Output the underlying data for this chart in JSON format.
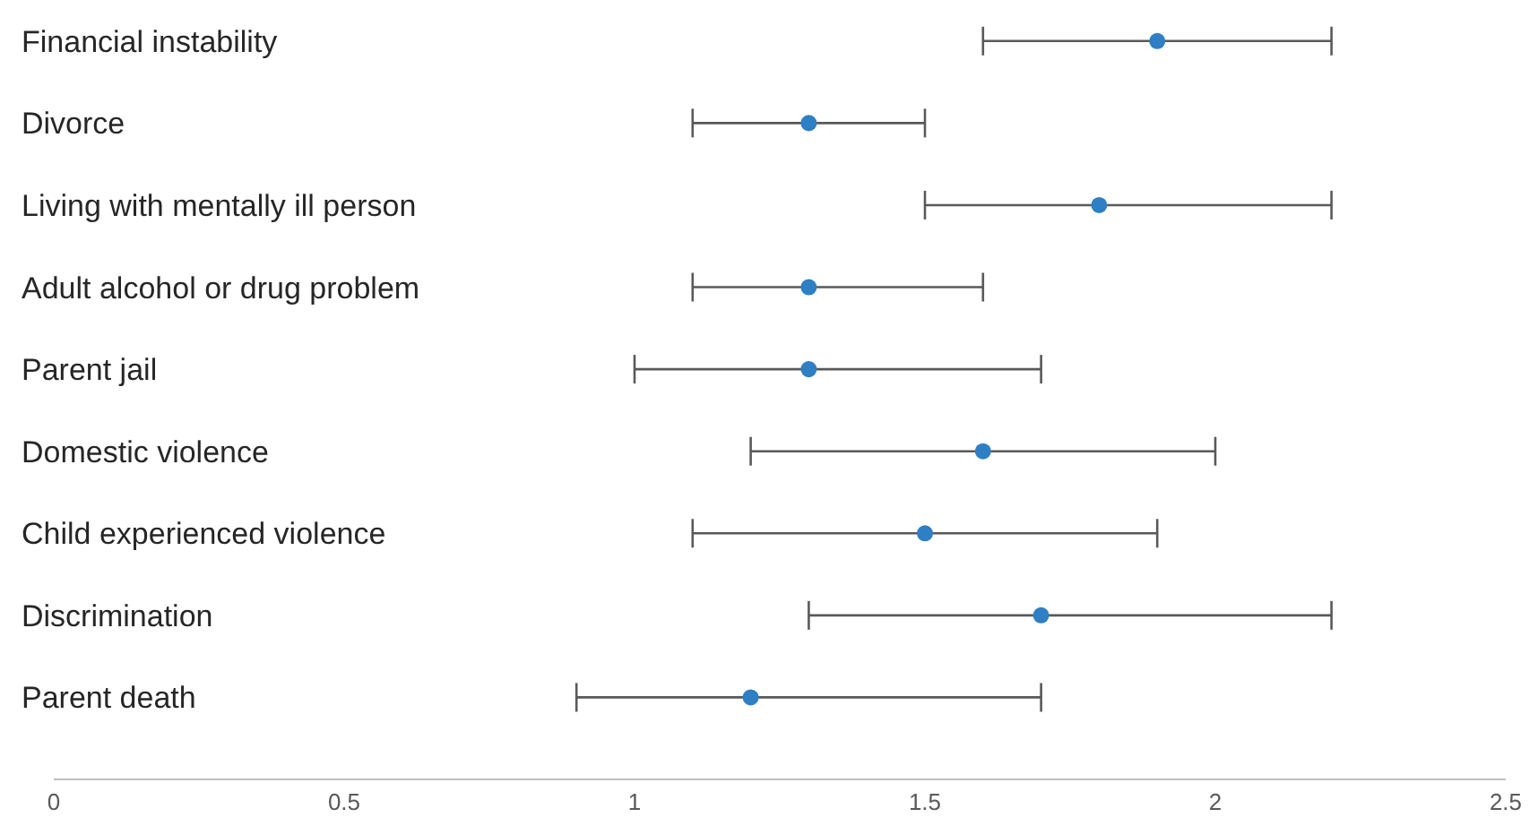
{
  "chart_data": {
    "type": "scatter",
    "orientation": "horizontal",
    "categories": [
      "Financial instability",
      "Divorce",
      "Living with mentally ill person",
      "Adult alcohol or drug problem",
      "Parent jail",
      "Domestic violence",
      "Child experienced violence",
      "Discrimination",
      "Parent death"
    ],
    "series": [
      {
        "color": "#2e7fc3",
        "values": [
          1.9,
          1.3,
          1.8,
          1.3,
          1.3,
          1.6,
          1.5,
          1.7,
          1.2
        ],
        "errors": [
          [
            1.6,
            2.2
          ],
          [
            1.1,
            1.5
          ],
          [
            1.5,
            2.2
          ],
          [
            1.1,
            1.6
          ],
          [
            1.0,
            1.7
          ],
          [
            1.2,
            2.0
          ],
          [
            1.1,
            1.9
          ],
          [
            1.3,
            2.2
          ],
          [
            0.9,
            1.7
          ]
        ]
      }
    ],
    "xlim": [
      0,
      2.5
    ],
    "xticks": [
      0,
      0.5,
      1,
      1.5,
      2,
      2.5
    ],
    "grid": false,
    "legend": false,
    "marker": "circle"
  }
}
